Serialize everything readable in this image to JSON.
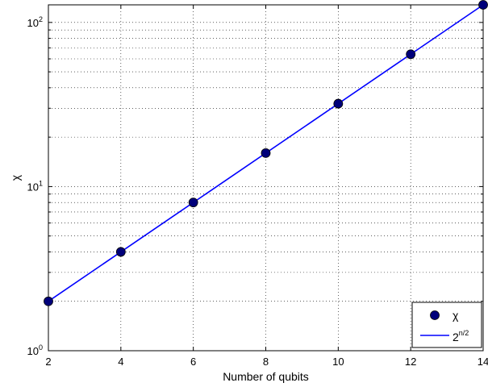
{
  "chart_data": {
    "type": "line",
    "scale": {
      "x": "linear",
      "y": "log10"
    },
    "xlabel": "Number of qubits",
    "ylabel": "χ",
    "xlim": [
      2,
      14
    ],
    "ylim": [
      1,
      128
    ],
    "x_ticks": [
      "2",
      "4",
      "6",
      "8",
      "10",
      "12",
      "14"
    ],
    "y_ticks": [
      {
        "value": 1,
        "base": "10",
        "exp": "0"
      },
      {
        "value": 10,
        "base": "10",
        "exp": "1"
      },
      {
        "value": 100,
        "base": "10",
        "exp": "2"
      }
    ],
    "grid": true,
    "legend_position": "bottom-right",
    "series": [
      {
        "name": "χ",
        "style": "markers",
        "color": "#00007a",
        "x": [
          2,
          4,
          6,
          8,
          10,
          12,
          14
        ],
        "y": [
          2,
          4,
          8,
          16,
          32,
          64,
          128
        ]
      },
      {
        "name_base": "2",
        "name_exp": "n/2",
        "style": "line",
        "color": "#0000ff",
        "x": [
          2,
          14
        ],
        "y": [
          2,
          128
        ]
      }
    ]
  }
}
